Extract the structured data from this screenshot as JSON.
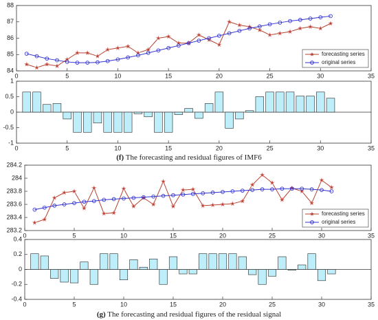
{
  "chart_data": [
    {
      "type": "line",
      "x": [
        1,
        2,
        3,
        4,
        5,
        6,
        7,
        8,
        9,
        10,
        11,
        12,
        13,
        14,
        15,
        16,
        17,
        18,
        19,
        20,
        21,
        22,
        23,
        24,
        25,
        26,
        27,
        28,
        29,
        30,
        31
      ],
      "series": [
        {
          "name": "forecasting series",
          "color": "#b5422e",
          "marker": "star",
          "values": [
            84.4,
            84.2,
            84.4,
            84.3,
            84.7,
            85.1,
            85.1,
            84.9,
            85.3,
            85.4,
            85.5,
            85.1,
            85.3,
            86.0,
            86.1,
            85.7,
            85.7,
            86.2,
            85.9,
            85.6,
            87.0,
            86.8,
            86.7,
            86.5,
            86.2,
            86.3,
            86.4,
            86.6,
            86.7,
            86.6,
            86.9
          ]
        },
        {
          "name": "original series",
          "color": "#3030d0",
          "marker": "circle",
          "values": [
            85.05,
            84.9,
            84.75,
            84.65,
            84.55,
            84.5,
            84.5,
            84.52,
            84.6,
            84.7,
            84.82,
            84.95,
            85.1,
            85.25,
            85.4,
            85.55,
            85.7,
            85.85,
            86.0,
            86.15,
            86.3,
            86.45,
            86.6,
            86.72,
            86.85,
            86.95,
            87.05,
            87.12,
            87.2,
            87.28,
            87.35
          ]
        }
      ],
      "xlim": [
        0,
        35
      ],
      "xticks": [
        0,
        5,
        10,
        15,
        20,
        25,
        30,
        35
      ],
      "ylim": [
        84,
        88
      ],
      "yticks": [
        84,
        85,
        86,
        87,
        88
      ],
      "legend": "lower right"
    },
    {
      "type": "bar",
      "x": [
        1,
        2,
        3,
        4,
        5,
        6,
        7,
        8,
        9,
        10,
        11,
        12,
        13,
        14,
        15,
        16,
        17,
        18,
        19,
        20,
        21,
        22,
        23,
        24,
        25,
        26,
        27,
        28,
        29,
        30,
        31
      ],
      "values": [
        0.65,
        0.65,
        0.25,
        0.28,
        -0.22,
        -0.65,
        -0.65,
        -0.35,
        -0.65,
        -0.65,
        -0.65,
        -0.05,
        -0.15,
        -0.65,
        -0.65,
        -0.08,
        0.12,
        -0.2,
        0.28,
        0.65,
        -0.52,
        -0.22,
        0.05,
        0.5,
        0.65,
        0.65,
        0.65,
        0.52,
        0.52,
        0.65,
        0.45
      ],
      "color": "#bdeef9",
      "xlim": [
        0,
        35
      ],
      "xticks": [
        0,
        5,
        10,
        15,
        20,
        25,
        30,
        35
      ],
      "ylim": [
        -1,
        1
      ],
      "yticks": [
        -1,
        -0.5,
        0,
        0.5,
        1
      ]
    },
    {
      "type": "line",
      "x": [
        1,
        2,
        3,
        4,
        5,
        6,
        7,
        8,
        9,
        10,
        11,
        12,
        13,
        14,
        15,
        16,
        17,
        18,
        19,
        20,
        21,
        22,
        23,
        24,
        25,
        26,
        27,
        28,
        29,
        30,
        31
      ],
      "series": [
        {
          "name": "forecasting series",
          "color": "#b5422e",
          "marker": "star",
          "values": [
            283.32,
            283.37,
            283.7,
            283.78,
            283.8,
            283.54,
            283.85,
            283.46,
            283.47,
            283.84,
            283.57,
            283.7,
            283.6,
            283.95,
            283.57,
            283.82,
            283.83,
            283.58,
            283.59,
            283.6,
            283.61,
            283.65,
            283.9,
            284.05,
            283.93,
            283.67,
            283.85,
            283.8,
            283.62,
            283.97,
            283.86
          ]
        },
        {
          "name": "original series",
          "color": "#3030d0",
          "marker": "circle",
          "values": [
            283.52,
            283.55,
            283.58,
            283.6,
            283.62,
            283.64,
            283.65,
            283.67,
            283.68,
            283.69,
            283.7,
            283.71,
            283.72,
            283.73,
            283.74,
            283.75,
            283.76,
            283.77,
            283.78,
            283.79,
            283.8,
            283.81,
            283.82,
            283.83,
            283.83,
            283.84,
            283.84,
            283.84,
            283.83,
            283.82,
            283.8
          ]
        }
      ],
      "xlim": [
        0,
        35
      ],
      "xticks": [
        0,
        5,
        10,
        15,
        20,
        25,
        30,
        35
      ],
      "ylim": [
        283.2,
        284.2
      ],
      "yticks": [
        283.2,
        283.4,
        283.6,
        283.8,
        284,
        284.2
      ],
      "legend": "lower right"
    },
    {
      "type": "bar",
      "x": [
        1,
        2,
        3,
        4,
        5,
        6,
        7,
        8,
        9,
        10,
        11,
        12,
        13,
        14,
        15,
        16,
        17,
        18,
        19,
        20,
        21,
        22,
        23,
        24,
        25,
        26,
        27,
        28,
        29,
        30,
        31
      ],
      "values": [
        0.21,
        0.18,
        -0.12,
        -0.17,
        -0.18,
        0.1,
        -0.2,
        0.21,
        0.21,
        -0.14,
        0.13,
        0.03,
        0.14,
        -0.2,
        0.17,
        -0.06,
        -0.06,
        0.21,
        0.21,
        0.21,
        0.21,
        0.17,
        -0.07,
        -0.2,
        -0.09,
        0.17,
        -0.01,
        0.06,
        0.21,
        -0.15,
        -0.06
      ],
      "color": "#bdeef9",
      "xlim": [
        0,
        35
      ],
      "xticks": [
        0,
        5,
        10,
        15,
        20,
        25,
        30,
        35
      ],
      "ylim": [
        -0.4,
        0.4
      ],
      "yticks": [
        -0.4,
        -0.2,
        0,
        0.2,
        0.4
      ]
    }
  ],
  "captions": [
    {
      "label": "(f)",
      "text": "The forecasting and residual figures of IMF6"
    },
    {
      "label": "(g)",
      "text": "The forecasting and residual figures of the residual signal"
    }
  ]
}
